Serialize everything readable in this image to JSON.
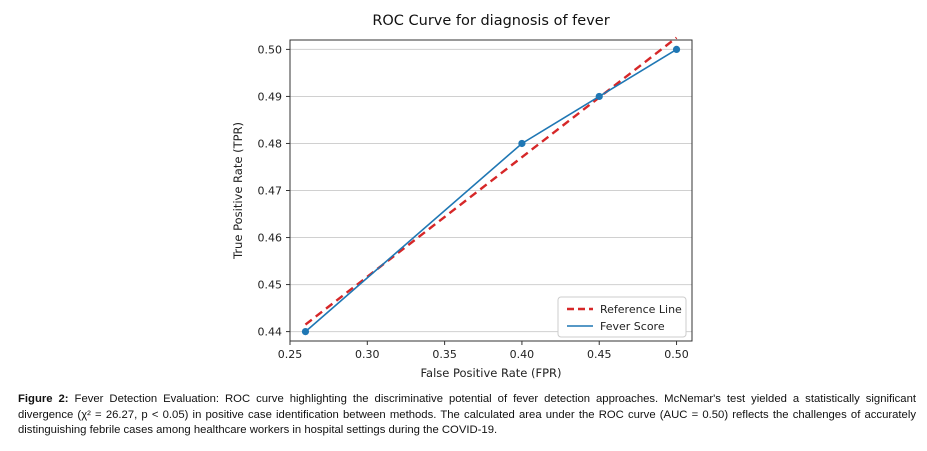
{
  "chart_data": {
    "type": "line",
    "title": "ROC Curve for diagnosis of fever",
    "xlabel": "False Positive Rate (FPR)",
    "ylabel": "True Positive Rate (TPR)",
    "xlim": [
      0.25,
      0.51
    ],
    "ylim": [
      0.438,
      0.502
    ],
    "x_ticks": [
      "0.25",
      "0.30",
      "0.35",
      "0.40",
      "0.45",
      "0.50"
    ],
    "y_ticks": [
      "0.44",
      "0.45",
      "0.46",
      "0.47",
      "0.48",
      "0.49",
      "0.50"
    ],
    "grid": "horizontal",
    "legend_position": "lower-right",
    "series": [
      {
        "name": "Reference Line",
        "style": "dashed",
        "color": "#d62728",
        "x": [
          0.26,
          0.5
        ],
        "y": [
          0.4415,
          0.5025
        ]
      },
      {
        "name": "Fever Score",
        "style": "solid",
        "color": "#1f77b4",
        "markers": true,
        "x": [
          0.26,
          0.4,
          0.45,
          0.5
        ],
        "y": [
          0.44,
          0.48,
          0.49,
          0.5
        ]
      }
    ]
  },
  "caption": {
    "label": "Figure 2:",
    "text": " Fever Detection Evaluation: ROC curve highlighting the discriminative potential of fever detection approaches. McNemar's test yielded a statistically significant divergence (χ² = 26.27, p < 0.05) in positive case identification between methods. The calculated area under the ROC curve (AUC = 0.50) reflects the challenges of accurately distinguishing febrile cases among healthcare workers in hospital settings during the COVID-19."
  }
}
